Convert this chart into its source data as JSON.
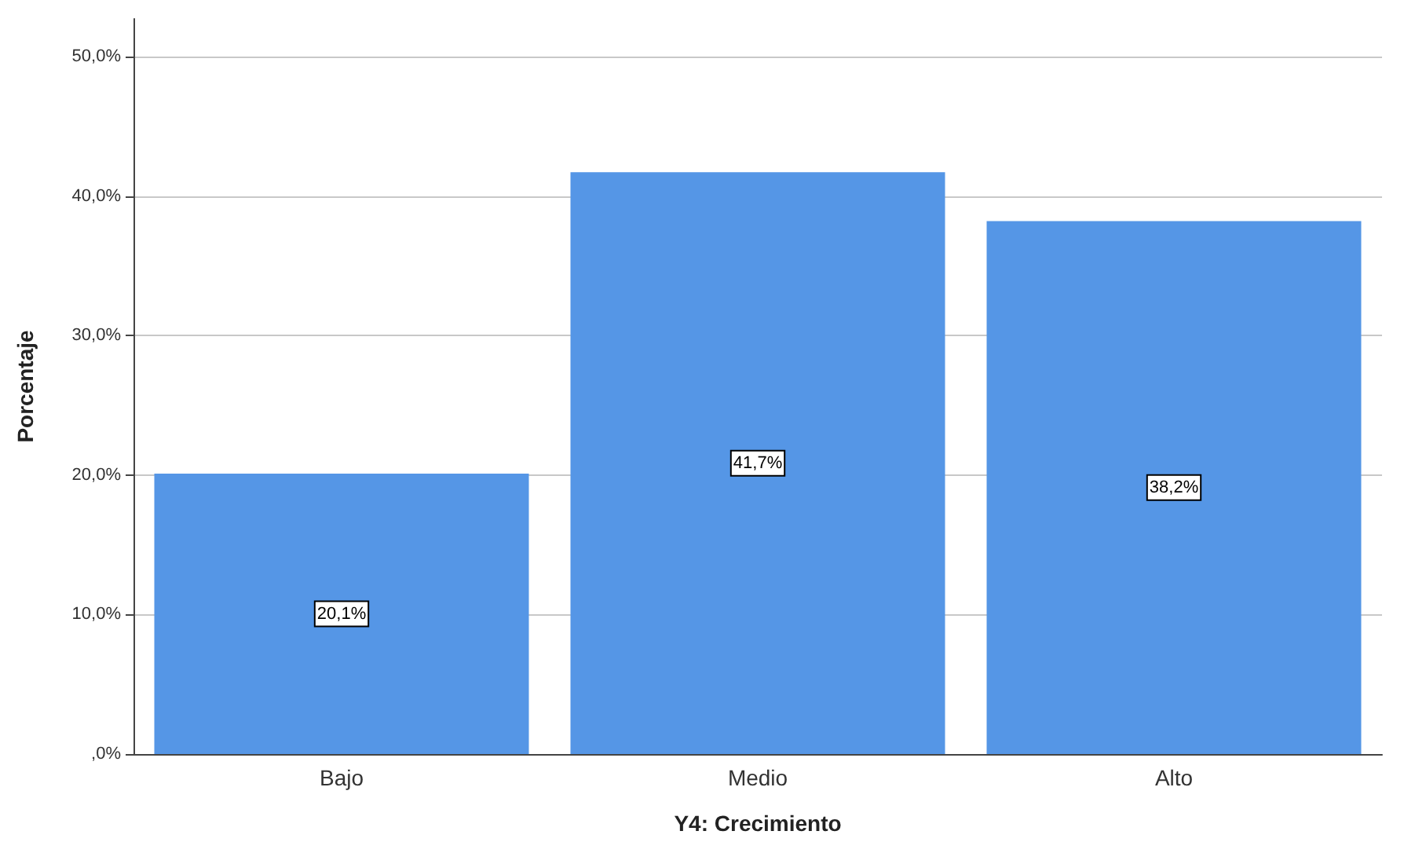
{
  "chart_data": {
    "type": "bar",
    "xlabel": "Y4: Crecimiento",
    "ylabel": "Porcentaje",
    "categories": [
      "Bajo",
      "Medio",
      "Alto"
    ],
    "values": [
      20.1,
      41.7,
      38.2
    ],
    "color": "#5596e6",
    "value_labels": [
      "20,1%",
      "41,7%",
      "38,2%"
    ],
    "ylim": [
      0,
      52.7
    ],
    "yticks": [
      {
        "value": 0,
        "label": ",0%"
      },
      {
        "value": 10,
        "label": "10,0%"
      },
      {
        "value": 20,
        "label": "20,0%"
      },
      {
        "value": 30,
        "label": "30,0%"
      },
      {
        "value": 40,
        "label": "40,0%"
      },
      {
        "value": 50,
        "label": "50,0%"
      }
    ],
    "grid": "y"
  }
}
